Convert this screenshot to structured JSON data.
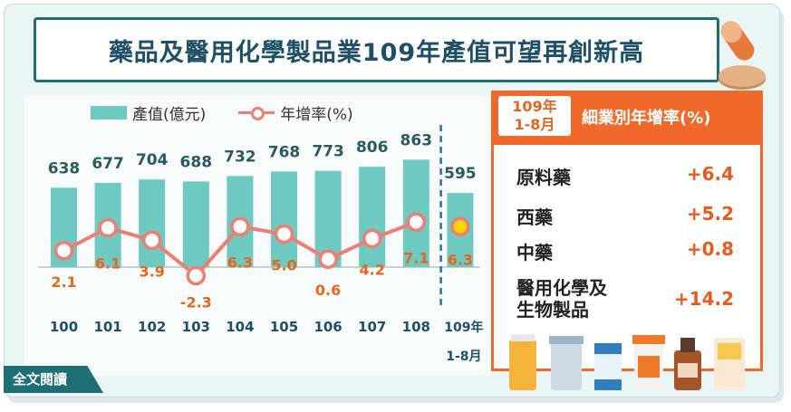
{
  "title": "藥品及醫用化學製品業109年產值可望再創新高",
  "legend": {
    "bar": "產值(億元)",
    "line": "年增率(%)"
  },
  "colors": {
    "bar": "#6ec9c1",
    "line": "#ee7d73",
    "highlight": "#ffd400",
    "accent": "#ef6a2a",
    "title": "#1d4f66"
  },
  "chart_data": {
    "type": "bar",
    "categories": [
      "100",
      "101",
      "102",
      "103",
      "104",
      "105",
      "106",
      "107",
      "108",
      "109年 1-8月"
    ],
    "series": [
      {
        "name": "產值(億元)",
        "type": "bar",
        "values": [
          638,
          677,
          704,
          688,
          732,
          768,
          773,
          806,
          863,
          595
        ]
      },
      {
        "name": "年增率(%)",
        "type": "line",
        "values": [
          2.1,
          6.1,
          3.9,
          -2.3,
          6.3,
          5.0,
          0.6,
          4.2,
          7.1,
          6.3
        ]
      }
    ],
    "value_labels": [
      "638",
      "677",
      "704",
      "688",
      "732",
      "768",
      "773",
      "806",
      "863",
      "595"
    ],
    "rate_labels": [
      "2.1",
      "6.1",
      "3.9",
      "-2.3",
      "6.3",
      "5.0",
      "0.6",
      "4.2",
      "7.1",
      "6.3"
    ]
  },
  "panel": {
    "period_line1": "109年",
    "period_line2": "1-8月",
    "title": "細業別年增率(%)",
    "rows": [
      {
        "label": "原料藥",
        "value": "+6.4"
      },
      {
        "label": "西藥",
        "value": "+5.2"
      },
      {
        "label": "中藥",
        "value": "+0.8"
      },
      {
        "label_line1": "醫用化學及",
        "label_line2": "生物製品",
        "value": "+14.2"
      }
    ]
  },
  "footer": {
    "link": "全文閱讀"
  }
}
